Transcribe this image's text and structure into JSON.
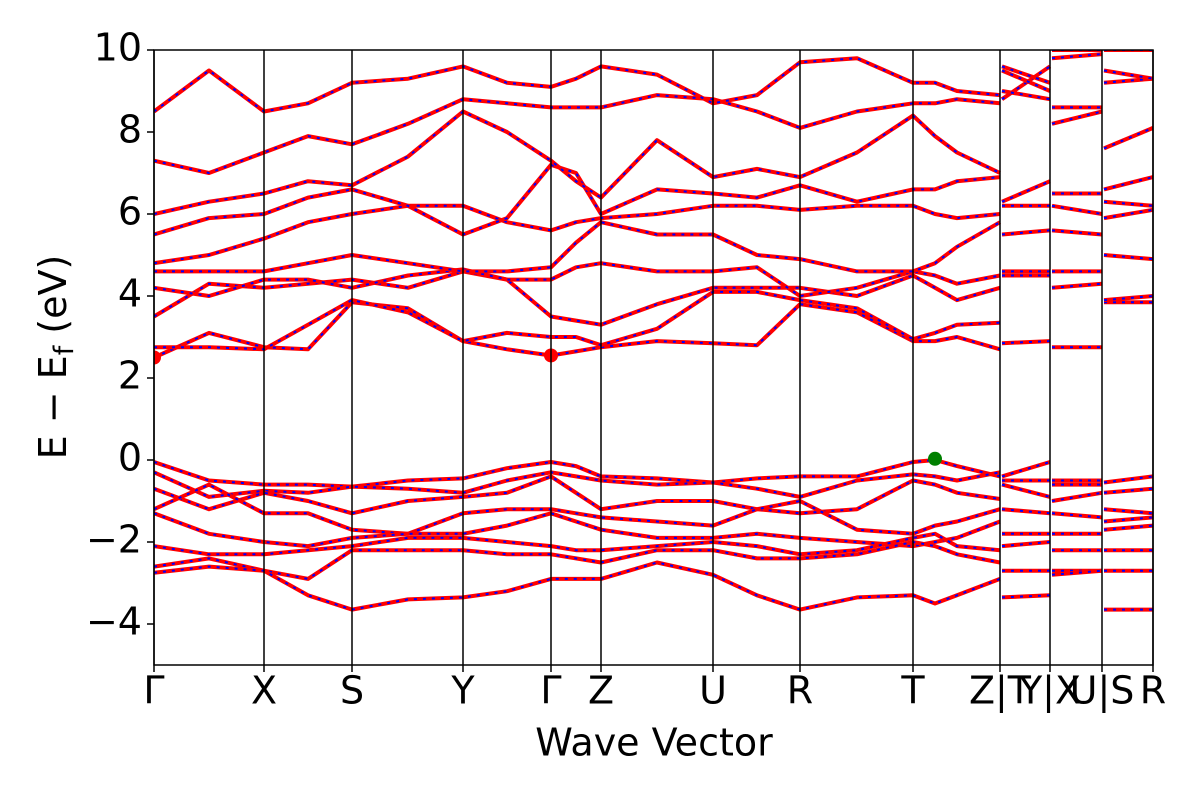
{
  "chart_data": {
    "type": "line",
    "xlabel": "Wave Vector",
    "ylabel": [
      "E − E",
      "f",
      " (eV)"
    ],
    "xlim": [
      0,
      999
    ],
    "ylim": [
      -5,
      10
    ],
    "xticks": [
      {
        "value": 0,
        "label": "Γ"
      },
      {
        "value": 110,
        "label": "X"
      },
      {
        "value": 198,
        "label": "S"
      },
      {
        "value": 309,
        "label": "Y"
      },
      {
        "value": 397,
        "label": "Γ"
      },
      {
        "value": 447,
        "label": "Z"
      },
      {
        "value": 559,
        "label": "U"
      },
      {
        "value": 646,
        "label": "R"
      },
      {
        "value": 759,
        "label": "T"
      },
      {
        "value": 846,
        "label": "Z|T"
      },
      {
        "value": 896,
        "label": "Y|X"
      },
      {
        "value": 948,
        "label": "U|S"
      },
      {
        "value": 999,
        "label": "R"
      }
    ],
    "yticks": [
      {
        "value": -4,
        "label": "−4"
      },
      {
        "value": -2,
        "label": "−2"
      },
      0,
      2,
      4,
      6,
      8,
      10
    ],
    "overlay_color": "#0000ff",
    "x": [
      0,
      55,
      110,
      154,
      198,
      254,
      309,
      353,
      397,
      422,
      447,
      503,
      559,
      603,
      646,
      703,
      759,
      781,
      803,
      846,
      847,
      848,
      896,
      897,
      898,
      948,
      949,
      950,
      999
    ],
    "series": [
      {
        "color": "#ff0000",
        "values": [
          -0.05,
          -0.5,
          -0.6,
          -0.6,
          -0.65,
          -0.5,
          -0.45,
          -0.2,
          -0.05,
          -0.15,
          -0.4,
          -0.45,
          -0.55,
          -0.45,
          -0.4,
          -0.4,
          -0.05,
          0.0,
          -0.15,
          -0.4,
          null,
          -0.4,
          -0.05,
          null,
          -0.5,
          -0.5,
          null,
          -0.55,
          -0.4
        ]
      },
      {
        "color": "#ff0000",
        "values": [
          -0.3,
          -0.9,
          -0.75,
          -0.8,
          -0.65,
          -0.7,
          -0.8,
          -0.5,
          -0.3,
          -0.4,
          -0.5,
          -0.6,
          -0.55,
          -0.7,
          -0.9,
          -0.5,
          -0.35,
          -0.4,
          -0.5,
          -0.3,
          null,
          -0.5,
          -0.5,
          null,
          -0.6,
          -0.6,
          null,
          -0.8,
          -0.7
        ]
      },
      {
        "color": "#ff0000",
        "values": [
          -0.7,
          -1.2,
          -0.8,
          -1.0,
          -1.3,
          -1.0,
          -0.9,
          -0.8,
          -0.4,
          -0.8,
          -1.2,
          -1.0,
          -1.0,
          -1.2,
          -1.3,
          -1.2,
          -0.5,
          -0.6,
          -0.8,
          -0.95,
          null,
          -0.6,
          -0.9,
          null,
          -1.0,
          -0.8,
          null,
          -1.2,
          -1.3
        ]
      },
      {
        "color": "#ff0000",
        "values": [
          -1.2,
          -0.6,
          -1.3,
          -1.3,
          -1.7,
          -1.8,
          -1.3,
          -1.2,
          -1.2,
          -1.3,
          -1.4,
          -1.5,
          -1.6,
          -1.2,
          -1.0,
          -1.7,
          -1.8,
          -1.6,
          -1.5,
          -1.2,
          null,
          -1.2,
          -1.3,
          null,
          -1.3,
          -1.4,
          null,
          -1.5,
          -1.4
        ]
      },
      {
        "color": "#ff0000",
        "values": [
          -1.3,
          -1.8,
          -2.0,
          -2.1,
          -1.9,
          -1.8,
          -1.8,
          -1.6,
          -1.3,
          -1.5,
          -1.7,
          -1.9,
          -1.9,
          -1.8,
          -1.9,
          -2.0,
          -2.1,
          -2.0,
          -1.9,
          -1.5,
          null,
          -1.8,
          -1.8,
          null,
          -1.8,
          -1.8,
          null,
          -1.7,
          -1.6
        ]
      },
      {
        "color": "#ff0000",
        "values": [
          -2.1,
          -2.3,
          -2.3,
          -2.2,
          -2.1,
          -1.9,
          -1.9,
          -2.0,
          -2.1,
          -2.2,
          -2.2,
          -2.1,
          -2.0,
          -2.1,
          -2.3,
          -2.2,
          -1.9,
          -1.8,
          -2.1,
          -2.2,
          null,
          -2.1,
          -2.0,
          null,
          -2.2,
          -2.2,
          null,
          -2.2,
          -2.2
        ]
      },
      {
        "color": "#ff0000",
        "values": [
          -2.6,
          -2.4,
          -2.7,
          -2.9,
          -2.2,
          -2.2,
          -2.2,
          -2.3,
          -2.3,
          -2.4,
          -2.5,
          -2.2,
          -2.2,
          -2.4,
          -2.4,
          -2.3,
          -2.0,
          -2.1,
          -2.3,
          -2.5,
          null,
          -2.7,
          -2.7,
          null,
          -2.7,
          -2.7,
          null,
          -2.7,
          -2.7
        ]
      },
      {
        "color": "#ff0000",
        "values": [
          -2.75,
          -2.6,
          -2.7,
          -3.3,
          -3.65,
          -3.4,
          -3.35,
          -3.2,
          -2.9,
          -2.9,
          -2.9,
          -2.5,
          -2.8,
          -3.3,
          -3.65,
          -3.35,
          -3.3,
          -3.5,
          -3.3,
          -2.9,
          null,
          -3.35,
          -3.3,
          null,
          -2.8,
          -2.7,
          null,
          -3.65,
          -3.65
        ]
      },
      {
        "color": "#ff0000",
        "values": [
          2.5,
          3.1,
          2.75,
          2.7,
          3.85,
          3.7,
          2.9,
          2.7,
          2.55,
          2.65,
          2.75,
          2.9,
          2.85,
          2.8,
          3.8,
          3.6,
          2.9,
          2.9,
          3.0,
          2.7,
          null,
          2.85,
          2.9,
          null,
          2.75,
          2.75,
          null,
          3.85,
          3.85
        ]
      },
      {
        "color": "#ff0000",
        "values": [
          2.75,
          2.75,
          2.7,
          3.3,
          3.9,
          3.6,
          2.9,
          3.1,
          3.0,
          3.0,
          2.8,
          3.2,
          4.1,
          4.1,
          3.9,
          3.7,
          2.95,
          3.1,
          3.3,
          3.35,
          null,
          4.5,
          4.5,
          null,
          4.2,
          4.3,
          null,
          3.9,
          4.0
        ]
      },
      {
        "color": "#ff0000",
        "values": [
          3.5,
          4.3,
          4.2,
          4.3,
          4.4,
          4.2,
          4.6,
          4.4,
          3.5,
          3.4,
          3.3,
          3.8,
          4.2,
          4.2,
          4.2,
          4.0,
          4.5,
          4.2,
          3.9,
          4.2,
          null,
          4.6,
          4.6,
          null,
          4.6,
          4.6,
          null,
          5.0,
          4.9
        ]
      },
      {
        "color": "#ff0000",
        "values": [
          4.2,
          4.0,
          4.4,
          4.4,
          4.2,
          4.5,
          4.65,
          4.4,
          4.4,
          4.7,
          4.8,
          4.6,
          4.6,
          4.7,
          4.0,
          4.2,
          4.6,
          4.5,
          4.3,
          4.5,
          null,
          5.5,
          5.6,
          null,
          5.6,
          5.5,
          null,
          5.9,
          6.1
        ]
      },
      {
        "color": "#ff0000",
        "values": [
          4.6,
          4.6,
          4.6,
          4.8,
          5.0,
          4.8,
          4.6,
          4.6,
          4.7,
          5.3,
          5.8,
          5.5,
          5.5,
          5.0,
          4.9,
          4.6,
          4.6,
          4.8,
          5.2,
          5.8,
          null,
          6.2,
          6.2,
          null,
          6.2,
          6.0,
          null,
          6.3,
          6.2
        ]
      },
      {
        "color": "#ff0000",
        "values": [
          4.8,
          5.0,
          5.4,
          5.8,
          6.0,
          6.2,
          6.2,
          5.8,
          5.6,
          5.8,
          5.9,
          6.0,
          6.2,
          6.2,
          6.1,
          6.2,
          6.2,
          6.0,
          5.9,
          6.0,
          null,
          6.3,
          6.8,
          null,
          6.5,
          6.5,
          null,
          6.6,
          6.9
        ]
      },
      {
        "color": "#ff0000",
        "values": [
          5.5,
          5.9,
          6.0,
          6.4,
          6.6,
          6.2,
          5.5,
          5.9,
          7.2,
          7.0,
          6.0,
          6.6,
          6.5,
          6.4,
          6.7,
          6.3,
          6.6,
          6.6,
          6.8,
          6.9,
          null,
          8.8,
          9.6,
          null,
          8.2,
          8.5,
          null,
          7.6,
          8.1
        ]
      },
      {
        "color": "#ff0000",
        "values": [
          6.0,
          6.3,
          6.5,
          6.8,
          6.7,
          7.4,
          8.5,
          8.0,
          7.3,
          6.8,
          6.4,
          7.8,
          6.9,
          7.1,
          6.9,
          7.5,
          8.4,
          7.9,
          7.5,
          7.0,
          null,
          9.0,
          8.8,
          null,
          8.6,
          8.6,
          null,
          9.2,
          9.3
        ]
      },
      {
        "color": "#ff0000",
        "values": [
          7.3,
          7.0,
          7.5,
          7.9,
          7.7,
          8.2,
          8.8,
          8.7,
          8.6,
          8.6,
          8.6,
          8.9,
          8.8,
          8.5,
          8.1,
          8.5,
          8.7,
          8.7,
          8.8,
          8.7,
          null,
          9.5,
          9.0,
          null,
          9.8,
          9.9,
          null,
          9.5,
          9.3
        ]
      },
      {
        "color": "#ff0000",
        "values": [
          8.5,
          9.5,
          8.5,
          8.7,
          9.2,
          9.3,
          9.6,
          9.2,
          9.1,
          9.3,
          9.6,
          9.4,
          8.7,
          8.9,
          9.7,
          9.8,
          9.2,
          9.2,
          9.0,
          8.9,
          null,
          9.6,
          9.2,
          null,
          10.0,
          10.0,
          null,
          10.0,
          10.0
        ]
      }
    ],
    "points": [
      {
        "x": 0,
        "y": 2.5,
        "color": "#ff0000"
      },
      {
        "x": 397,
        "y": 2.55,
        "color": "#ff0000"
      },
      {
        "x": 781,
        "y": 0.03,
        "color": "#008000"
      }
    ]
  }
}
